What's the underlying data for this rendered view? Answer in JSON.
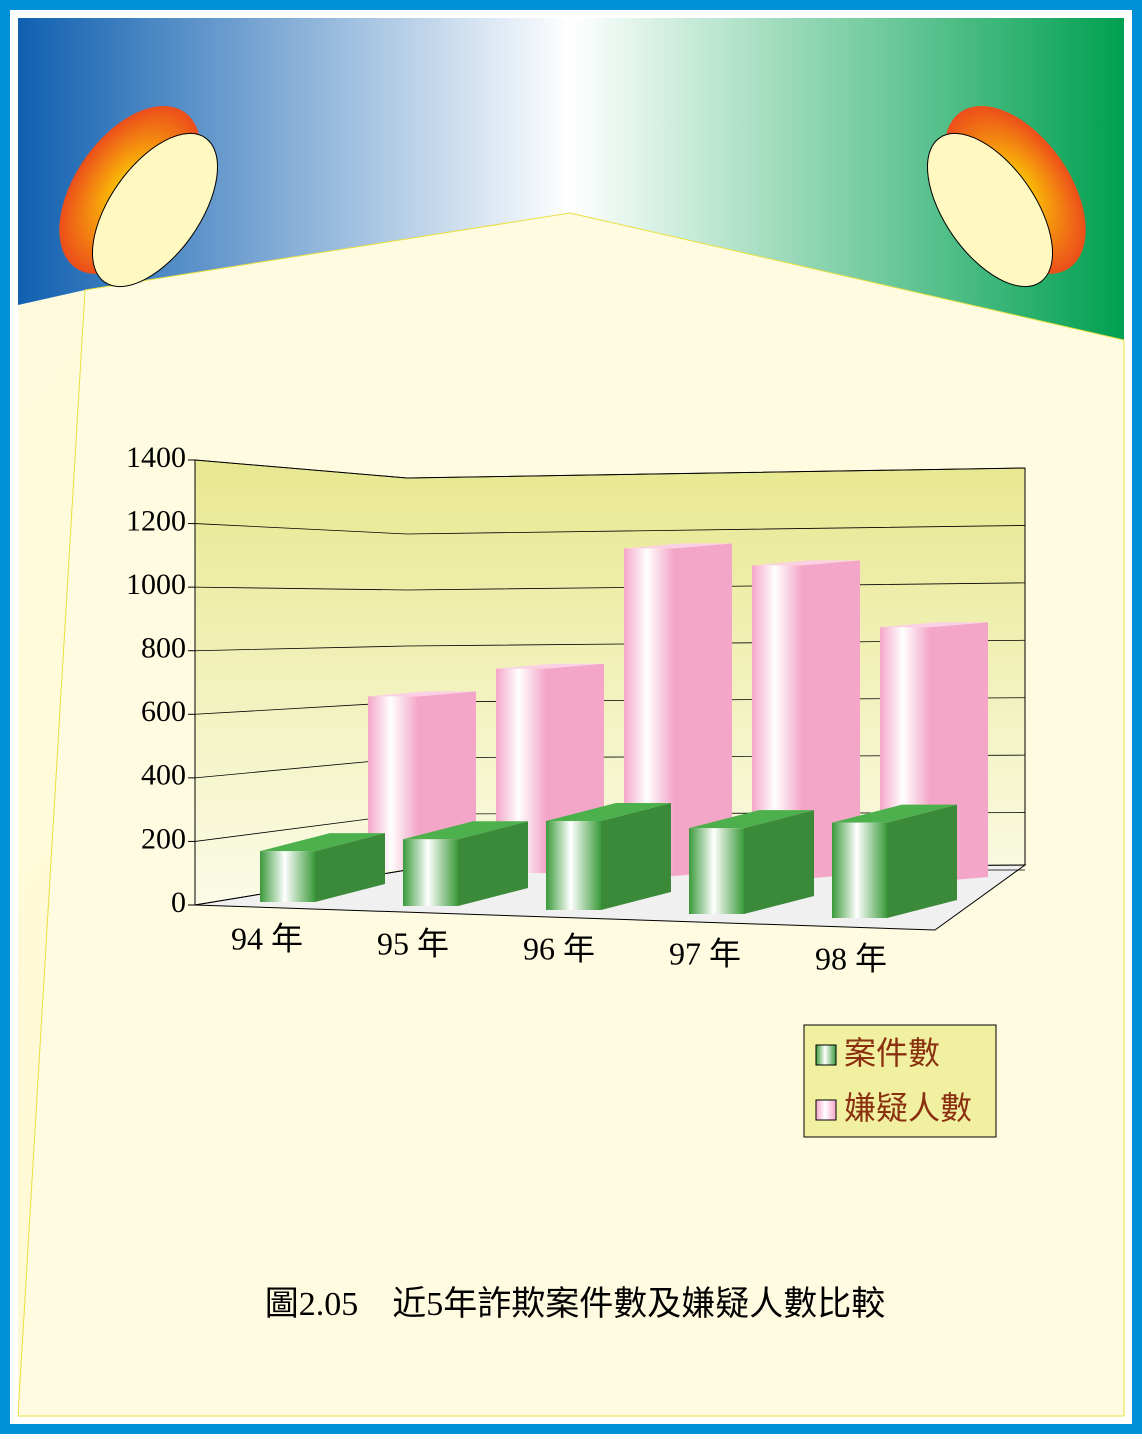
{
  "chart_data": {
    "type": "bar3d",
    "title": "圖2.05　近5年詐欺案件數及嫌疑人數比較",
    "categories": [
      "94 年",
      "95 年",
      "96 年",
      "97 年",
      "98 年"
    ],
    "series": [
      {
        "name": "案件數",
        "color": "#3a8a3a",
        "values": [
          160,
          210,
          280,
          270,
          300
        ]
      },
      {
        "name": "嫌疑人數",
        "color": "#f4a6c8",
        "values": [
          620,
          730,
          1170,
          1120,
          910
        ]
      }
    ],
    "ylim": [
      0,
      1400
    ],
    "yticks": [
      0,
      200,
      400,
      600,
      800,
      1000,
      1200,
      1400
    ],
    "grid": true
  }
}
